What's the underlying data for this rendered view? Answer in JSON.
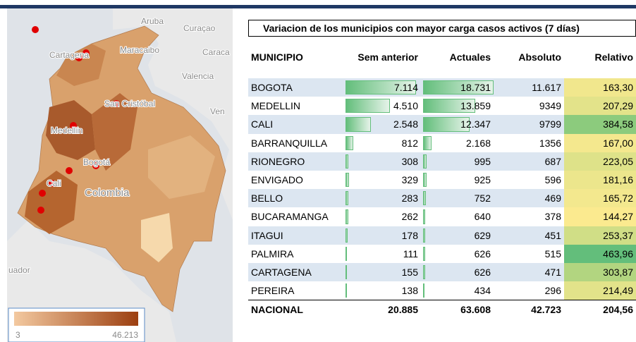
{
  "map": {
    "labels": [
      "Aruba",
      "Curaçao",
      "Cartagena",
      "Maracaibo",
      "Caraca",
      "Valencia",
      "San Cristóbal",
      "Ven",
      "Medellín",
      "Bogotá",
      "Cali",
      "Colombia",
      "uador"
    ],
    "legend": {
      "min": "3",
      "max": "46.213"
    }
  },
  "table": {
    "title": "Variacion de los municipios con mayor carga casos activos (7 días)",
    "headers": [
      "MUNICIPIO",
      "Sem anterior",
      "Actuales",
      "Absoluto",
      "Relativo"
    ],
    "rows": [
      [
        "BOGOTA",
        "7.114",
        "18.731",
        "11.617",
        "163,30"
      ],
      [
        "MEDELLIN",
        "4.510",
        "13.859",
        "9349",
        "207,29"
      ],
      [
        "CALI",
        "2.548",
        "12.347",
        "9799",
        "384,58"
      ],
      [
        "BARRANQUILLA",
        "812",
        "2.168",
        "1356",
        "167,00"
      ],
      [
        "RIONEGRO",
        "308",
        "995",
        "687",
        "223,05"
      ],
      [
        "ENVIGADO",
        "329",
        "925",
        "596",
        "181,16"
      ],
      [
        "BELLO",
        "283",
        "752",
        "469",
        "165,72"
      ],
      [
        "BUCARAMANGA",
        "262",
        "640",
        "378",
        "144,27"
      ],
      [
        "ITAGUI",
        "178",
        "629",
        "451",
        "253,37"
      ],
      [
        "PALMIRA",
        "111",
        "626",
        "515",
        "463,96"
      ],
      [
        "CARTAGENA",
        "155",
        "626",
        "471",
        "303,87"
      ],
      [
        "PEREIRA",
        "138",
        "434",
        "296",
        "214,49"
      ]
    ],
    "total": [
      "NACIONAL",
      "20.885",
      "63.608",
      "42.723",
      "204,56"
    ],
    "relative_colors": [
      "#f1e78d",
      "#e3e38a",
      "#8ccb7d",
      "#f4e88e",
      "#dee289",
      "#ece68c",
      "#f3e88e",
      "#fbea8f",
      "#d0de86",
      "#63be7b",
      "#b2d580",
      "#e2e38a"
    ]
  }
}
